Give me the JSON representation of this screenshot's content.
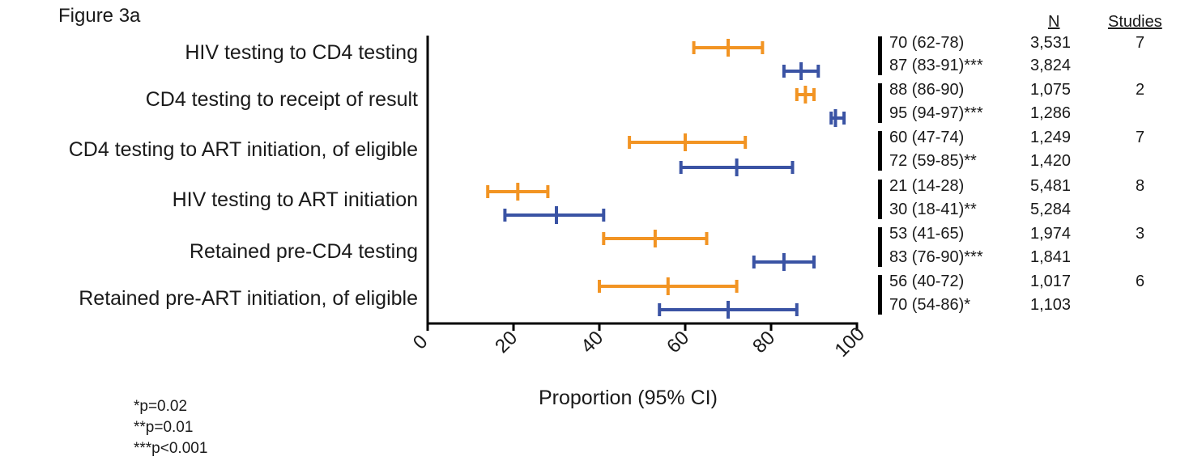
{
  "figure_label": "Figure 3a",
  "footnotes": [
    "*p=0.02",
    "**p=0.01",
    "***p<0.001"
  ],
  "column_headers": {
    "n": "N",
    "studies": "Studies"
  },
  "colors": {
    "group1": "#f29423",
    "group2": "#3a53a4",
    "axis": "#000000"
  },
  "chart_data": {
    "type": "forest",
    "title": "",
    "xlabel": "Proportion (95% CI)",
    "ylabel": "",
    "xlim": [
      0,
      100
    ],
    "xticks": [
      "0",
      "20",
      "40",
      "60",
      "80",
      "100"
    ],
    "grid": false,
    "categories": [
      "HIV testing to CD4 testing",
      "CD4 testing to receipt of result",
      "CD4 testing to ART initiation, of eligible",
      "HIV testing to ART initiation",
      "Retained pre-CD4 testing",
      "Retained pre-ART initiation, of eligible"
    ],
    "series": [
      {
        "values": [
          70,
          88,
          60,
          21,
          53,
          56
        ],
        "lower": [
          62,
          86,
          47,
          14,
          41,
          40
        ],
        "upper": [
          78,
          90,
          74,
          28,
          65,
          72
        ]
      },
      {
        "values": [
          87,
          95,
          72,
          30,
          83,
          70
        ],
        "lower": [
          83,
          94,
          59,
          18,
          76,
          54
        ],
        "upper": [
          91,
          97,
          85,
          41,
          90,
          86
        ]
      }
    ],
    "table": [
      {
        "estimates": [
          "70 (62-78)",
          "87 (83-91)***"
        ],
        "n": [
          "3,531",
          "3,824"
        ],
        "studies": "7"
      },
      {
        "estimates": [
          "88 (86-90)",
          "95 (94-97)***"
        ],
        "n": [
          "1,075",
          "1,286"
        ],
        "studies": "2"
      },
      {
        "estimates": [
          "60 (47-74)",
          "72 (59-85)**"
        ],
        "n": [
          "1,249",
          "1,420"
        ],
        "studies": "7"
      },
      {
        "estimates": [
          "21 (14-28)",
          "30 (18-41)**"
        ],
        "n": [
          "5,481",
          "5,284"
        ],
        "studies": "8"
      },
      {
        "estimates": [
          "53 (41-65)",
          "83 (76-90)***"
        ],
        "n": [
          "1,974",
          "1,841"
        ],
        "studies": "3"
      },
      {
        "estimates": [
          "56 (40-72)",
          "70 (54-86)*"
        ],
        "n": [
          "1,017",
          "1,103"
        ],
        "studies": "6"
      }
    ]
  }
}
